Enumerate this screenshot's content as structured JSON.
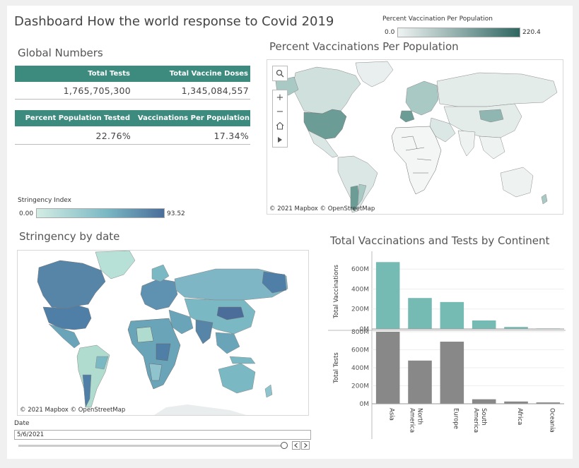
{
  "dashboard_title": "Dashboard How the world response to Covid 2019",
  "global_numbers": {
    "title": "Global Numbers",
    "row1_headers": [
      "Total Tests",
      "Total Vaccine Doses"
    ],
    "row1_values": [
      "1,765,705,300",
      "1,345,084,557"
    ],
    "row2_headers": [
      "Percent Population Tested",
      "Vaccinations Per Population"
    ],
    "row2_values": [
      "22.76%",
      "17.34%"
    ]
  },
  "vacc_legend": {
    "title": "Percent Vaccination Per Population",
    "min": "0.0",
    "max": "220.4",
    "color_low": "#eef3f2",
    "color_high": "#2f6661"
  },
  "vacc_map": {
    "title": "Percent Vaccinations Per Population",
    "attribution": "© 2021 Mapbox © OpenStreetMap"
  },
  "stringency_legend": {
    "title": "Stringency Index",
    "min": "0.00",
    "max": "93.52",
    "color_low": "#d3ece3",
    "color_high": "#4a6d99"
  },
  "stringency_map": {
    "title": "Stringency by date",
    "attribution": "© 2021 Mapbox © OpenStreetMap"
  },
  "date_filter": {
    "label": "Date",
    "value": "5/6/2021",
    "slider_position": 1.0
  },
  "map_controls": {
    "search": "search-icon",
    "zoom_in": "+",
    "zoom_out": "−",
    "home": "home-icon",
    "play": "play-icon"
  },
  "chart_data": {
    "type": "bar",
    "title": "Total Vaccinations and Tests by Continent",
    "categories": [
      "Asia",
      "North America",
      "Europe",
      "South America",
      "Africa",
      "Oceania"
    ],
    "category_labels": [
      "Asia",
      "North\nAmerica",
      "Europe",
      "South\nAmerica",
      "Africa",
      "Oceania"
    ],
    "series": [
      {
        "name": "Total Vaccinations",
        "values": [
          670,
          310,
          270,
          85,
          20,
          5
        ],
        "color": "#76bab4",
        "ylabel": "Total Vaccinations",
        "ylim": [
          0,
          750
        ],
        "ticks": [
          0,
          200,
          400,
          600
        ],
        "tick_labels": [
          "0M",
          "200M",
          "400M",
          "600M"
        ]
      },
      {
        "name": "Total Tests",
        "values": [
          800,
          480,
          690,
          50,
          25,
          15
        ],
        "color": "#888888",
        "ylabel": "Total Tests",
        "ylim": [
          0,
          800
        ],
        "ticks": [
          0,
          200,
          400,
          600,
          800
        ],
        "tick_labels": [
          "0M",
          "200M",
          "400M",
          "600M",
          "800M"
        ]
      }
    ]
  }
}
